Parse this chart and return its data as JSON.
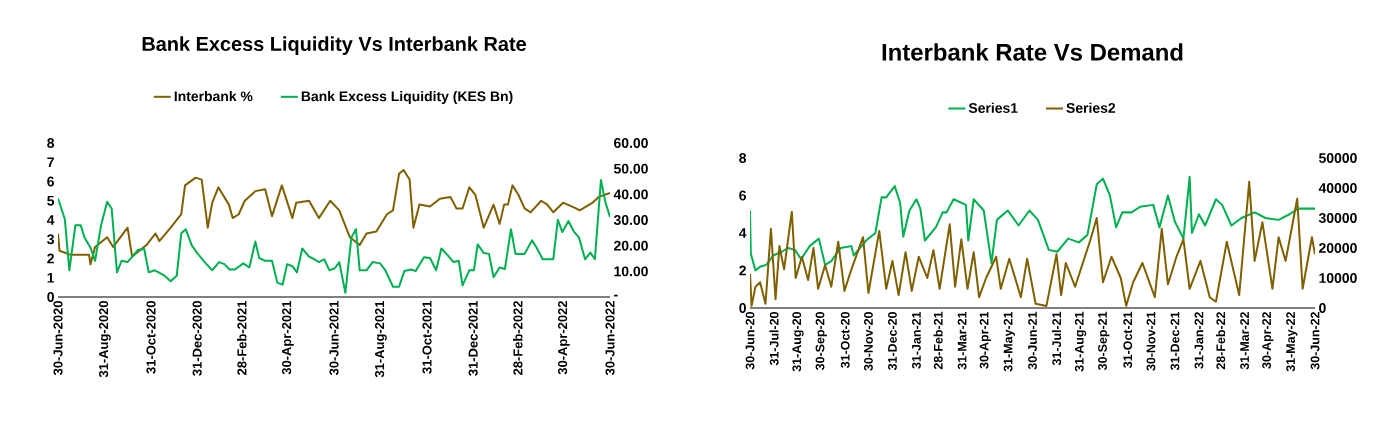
{
  "chart_data": [
    {
      "type": "line",
      "title": "Bank Excess Liquidity Vs Interbank Rate",
      "legend": "top",
      "xlim": [
        "2020-06-30",
        "2022-06-30"
      ],
      "xticks": [
        {
          "value": "2020-06-30",
          "label": "30-Jun-2020"
        },
        {
          "value": "2020-08-31",
          "label": "31-Aug-2020"
        },
        {
          "value": "2020-10-31",
          "label": "31-Oct-2020"
        },
        {
          "value": "2020-12-31",
          "label": "31-Dec-2020"
        },
        {
          "value": "2021-02-28",
          "label": "28-Feb-2021"
        },
        {
          "value": "2021-04-30",
          "label": "30-Apr-2021"
        },
        {
          "value": "2021-06-30",
          "label": "30-Jun-2021"
        },
        {
          "value": "2021-08-31",
          "label": "31-Aug-2021"
        },
        {
          "value": "2021-10-31",
          "label": "31-Oct-2021"
        },
        {
          "value": "2021-12-31",
          "label": "31-Dec-2021"
        },
        {
          "value": "2022-02-28",
          "label": "28-Feb-2022"
        },
        {
          "value": "2022-04-30",
          "label": "30-Apr-2022"
        },
        {
          "value": "2022-06-30",
          "label": "30-Jun-2022"
        }
      ],
      "ylim": [
        0,
        8
      ],
      "yticks": [
        0,
        1,
        2,
        3,
        4,
        5,
        6,
        7,
        8
      ],
      "y2lim": [
        0,
        60
      ],
      "y2ticks": [
        {
          "value": 0,
          "label": "-"
        },
        {
          "value": 10,
          "label": "10.00"
        },
        {
          "value": 20,
          "label": "20.00"
        },
        {
          "value": 30,
          "label": "30.00"
        },
        {
          "value": 40,
          "label": "40.00"
        },
        {
          "value": 50,
          "label": "50.00"
        },
        {
          "value": 60,
          "label": "60.00"
        }
      ],
      "series": [
        {
          "name": "Interbank %",
          "color": "#7f6000",
          "axis": "y",
          "x": [
            "2020-06-30",
            "2020-07-02",
            "2020-07-16",
            "2020-08-10",
            "2020-08-12",
            "2020-08-18",
            "2020-09-03",
            "2020-09-11",
            "2020-09-30",
            "2020-10-06",
            "2020-10-25",
            "2020-11-06",
            "2020-11-11",
            "2020-11-26",
            "2020-12-10",
            "2020-12-15",
            "2020-12-29",
            "2021-01-06",
            "2021-01-14",
            "2021-01-20",
            "2021-01-28",
            "2021-02-11",
            "2021-02-16",
            "2021-02-24",
            "2021-03-04",
            "2021-03-18",
            "2021-03-31",
            "2021-04-09",
            "2021-04-22",
            "2021-05-06",
            "2021-05-11",
            "2021-05-28",
            "2021-06-10",
            "2021-06-25",
            "2021-07-07",
            "2021-07-21",
            "2021-08-03",
            "2021-08-12",
            "2021-08-25",
            "2021-09-08",
            "2021-09-16",
            "2021-09-24",
            "2021-09-30",
            "2021-10-08",
            "2021-10-13",
            "2021-10-21",
            "2021-11-04",
            "2021-11-17",
            "2021-12-01",
            "2021-12-09",
            "2021-12-17",
            "2021-12-26",
            "2022-01-03",
            "2022-01-14",
            "2022-01-27",
            "2022-02-04",
            "2022-02-10",
            "2022-02-15",
            "2022-02-21",
            "2022-03-01",
            "2022-03-09",
            "2022-03-17",
            "2022-03-31",
            "2022-04-08",
            "2022-04-16",
            "2022-04-29",
            "2022-05-16",
            "2022-05-21",
            "2022-06-07",
            "2022-06-15",
            "2022-06-30"
          ],
          "values": [
            3.3,
            2.4,
            2.2,
            2.2,
            1.7,
            2.6,
            3.1,
            2.6,
            3.6,
            2.1,
            2.7,
            3.3,
            2.9,
            3.6,
            4.3,
            5.8,
            6.2,
            6.1,
            3.6,
            4.9,
            5.7,
            4.8,
            4.1,
            4.3,
            5.0,
            5.5,
            5.6,
            4.2,
            5.8,
            4.1,
            4.9,
            5.0,
            4.1,
            5.0,
            4.5,
            3.1,
            2.7,
            3.3,
            3.4,
            4.3,
            4.5,
            6.4,
            6.6,
            6.1,
            3.6,
            4.8,
            4.7,
            5.1,
            5.2,
            4.6,
            4.6,
            5.7,
            5.3,
            3.6,
            4.8,
            3.8,
            4.8,
            4.8,
            5.8,
            5.3,
            4.6,
            4.4,
            5.0,
            4.8,
            4.4,
            4.9,
            4.6,
            4.5,
            4.9,
            5.2,
            5.4
          ]
        },
        {
          "name": "Bank Excess Liquidity (KES Bn)",
          "color": "#00b050",
          "axis": "y2",
          "x": [
            "2020-06-30",
            "2020-07-09",
            "2020-07-15",
            "2020-07-23",
            "2020-07-30",
            "2020-08-04",
            "2020-08-12",
            "2020-08-18",
            "2020-08-26",
            "2020-09-03",
            "2020-09-09",
            "2020-09-16",
            "2020-09-22",
            "2020-09-30",
            "2020-10-14",
            "2020-10-22",
            "2020-10-28",
            "2020-11-05",
            "2020-11-18",
            "2020-11-26",
            "2020-12-04",
            "2020-12-10",
            "2020-12-16",
            "2020-12-24",
            "2021-01-01",
            "2021-01-10",
            "2021-01-20",
            "2021-01-29",
            "2021-02-05",
            "2021-02-12",
            "2021-02-19",
            "2021-03-02",
            "2021-03-10",
            "2021-03-18",
            "2021-03-23",
            "2021-03-31",
            "2021-04-09",
            "2021-04-16",
            "2021-04-23",
            "2021-04-29",
            "2021-05-06",
            "2021-05-12",
            "2021-05-19",
            "2021-05-28",
            "2021-06-04",
            "2021-06-10",
            "2021-06-17",
            "2021-06-24",
            "2021-07-01",
            "2021-07-07",
            "2021-07-15",
            "2021-07-23",
            "2021-07-29",
            "2021-08-03",
            "2021-08-12",
            "2021-08-20",
            "2021-08-30",
            "2021-09-06",
            "2021-09-16",
            "2021-09-24",
            "2021-10-01",
            "2021-10-10",
            "2021-10-16",
            "2021-10-27",
            "2021-11-04",
            "2021-11-12",
            "2021-11-19",
            "2021-11-28",
            "2021-12-05",
            "2021-12-12",
            "2021-12-17",
            "2021-12-26",
            "2022-01-01",
            "2022-01-06",
            "2022-01-14",
            "2022-01-21",
            "2022-01-27",
            "2022-02-04",
            "2022-02-11",
            "2022-02-19",
            "2022-02-25",
            "2022-03-09",
            "2022-03-19",
            "2022-03-25",
            "2022-04-02",
            "2022-04-16",
            "2022-04-22",
            "2022-04-28",
            "2022-05-06",
            "2022-05-13",
            "2022-05-20",
            "2022-05-28",
            "2022-06-04",
            "2022-06-10",
            "2022-06-18",
            "2022-06-24",
            "2022-06-30"
          ],
          "values": [
            38.4,
            30.4,
            10.4,
            28.0,
            28.0,
            23.2,
            19.2,
            14.1,
            28.0,
            37.1,
            34.4,
            9.6,
            14.1,
            13.6,
            18.4,
            18.7,
            9.6,
            10.4,
            8.3,
            6.1,
            8.3,
            24.8,
            26.4,
            20.0,
            16.8,
            13.6,
            10.4,
            13.6,
            12.8,
            10.7,
            10.7,
            13.1,
            11.5,
            21.6,
            15.2,
            14.1,
            14.1,
            5.6,
            4.8,
            12.8,
            12.0,
            9.6,
            18.9,
            15.7,
            14.7,
            13.6,
            14.7,
            10.4,
            11.2,
            13.6,
            1.6,
            23.2,
            26.4,
            10.4,
            10.4,
            13.6,
            13.1,
            10.4,
            4.0,
            4.0,
            10.1,
            10.7,
            10.1,
            15.5,
            15.2,
            10.4,
            18.9,
            16.0,
            13.6,
            14.1,
            4.5,
            10.4,
            10.4,
            20.5,
            17.1,
            16.8,
            7.7,
            11.5,
            10.9,
            26.4,
            16.8,
            16.8,
            22.1,
            19.2,
            14.7,
            14.7,
            30.1,
            25.3,
            29.6,
            25.6,
            23.2,
            14.7,
            17.3,
            14.7,
            45.6,
            36.8,
            31.2
          ]
        }
      ]
    },
    {
      "type": "line",
      "title": "Interbank Rate Vs Demand",
      "legend": "top",
      "xlim": [
        "2020-06-30",
        "2022-06-30"
      ],
      "xticks": [
        {
          "value": "2020-06-30",
          "label": "30-Jun-20"
        },
        {
          "value": "2020-07-31",
          "label": "31-Jul-20"
        },
        {
          "value": "2020-08-31",
          "label": "31-Aug-20"
        },
        {
          "value": "2020-09-30",
          "label": "30-Sep-20"
        },
        {
          "value": "2020-10-31",
          "label": "31-Oct-20"
        },
        {
          "value": "2020-11-30",
          "label": "30-Nov-20"
        },
        {
          "value": "2020-12-31",
          "label": "31-Dec-20"
        },
        {
          "value": "2021-01-31",
          "label": "31-Jan-21"
        },
        {
          "value": "2021-02-28",
          "label": "28-Feb-21"
        },
        {
          "value": "2021-03-31",
          "label": "31-Mar-21"
        },
        {
          "value": "2021-04-30",
          "label": "30-Apr-21"
        },
        {
          "value": "2021-05-31",
          "label": "31-May-21"
        },
        {
          "value": "2021-06-30",
          "label": "30-Jun-21"
        },
        {
          "value": "2021-07-31",
          "label": "31-Jul-21"
        },
        {
          "value": "2021-08-31",
          "label": "31-Aug-21"
        },
        {
          "value": "2021-09-30",
          "label": "30-Sep-21"
        },
        {
          "value": "2021-10-31",
          "label": "31-Oct-21"
        },
        {
          "value": "2021-11-30",
          "label": "30-Nov-21"
        },
        {
          "value": "2021-12-31",
          "label": "31-Dec-21"
        },
        {
          "value": "2022-01-31",
          "label": "31-Jan-22"
        },
        {
          "value": "2022-02-28",
          "label": "28-Feb-22"
        },
        {
          "value": "2022-03-31",
          "label": "31-Mar-22"
        },
        {
          "value": "2022-04-30",
          "label": "30-Apr-22"
        },
        {
          "value": "2022-05-31",
          "label": "31-May-22"
        },
        {
          "value": "2022-06-30",
          "label": "30-Jun-22"
        }
      ],
      "ylim": [
        0,
        8
      ],
      "yticks": [
        0,
        2,
        4,
        6,
        8
      ],
      "y2lim": [
        0,
        50000
      ],
      "y2ticks": [
        0,
        10000,
        20000,
        30000,
        40000,
        50000
      ],
      "series": [
        {
          "name": "Series1",
          "color": "#00b050",
          "axis": "y",
          "x": [
            "2020-06-30",
            "2020-07-01",
            "2020-07-07",
            "2020-07-13",
            "2020-07-21",
            "2020-07-30",
            "2020-08-10",
            "2020-08-18",
            "2020-08-27",
            "2020-09-04",
            "2020-09-15",
            "2020-09-27",
            "2020-10-05",
            "2020-10-13",
            "2020-10-25",
            "2020-11-08",
            "2020-11-11",
            "2020-11-27",
            "2020-12-09",
            "2020-12-17",
            "2020-12-23",
            "2021-01-03",
            "2021-01-10",
            "2021-01-14",
            "2021-01-22",
            "2021-01-31",
            "2021-02-05",
            "2021-02-11",
            "2021-02-25",
            "2021-03-06",
            "2021-03-11",
            "2021-03-20",
            "2021-04-05",
            "2021-04-08",
            "2021-04-15",
            "2021-04-28",
            "2021-05-08",
            "2021-05-15",
            "2021-05-29",
            "2021-06-12",
            "2021-06-26",
            "2021-07-07",
            "2021-07-21",
            "2021-08-01",
            "2021-08-15",
            "2021-08-29",
            "2021-09-09",
            "2021-09-21",
            "2021-09-29",
            "2021-10-08",
            "2021-10-16",
            "2021-10-24",
            "2021-11-05",
            "2021-11-16",
            "2021-12-03",
            "2021-12-11",
            "2021-12-22",
            "2021-12-31",
            "2022-01-11",
            "2022-01-19",
            "2022-01-22",
            "2022-01-31",
            "2022-02-08",
            "2022-02-22",
            "2022-03-02",
            "2022-03-14",
            "2022-03-27",
            "2022-04-13",
            "2022-04-27",
            "2022-05-14",
            "2022-05-28",
            "2022-06-08",
            "2022-06-19",
            "2022-06-30"
          ],
          "values": [
            5.2,
            2.9,
            2.0,
            2.2,
            2.3,
            2.8,
            3.0,
            3.2,
            3.1,
            2.6,
            3.3,
            3.7,
            2.3,
            2.5,
            3.2,
            3.3,
            2.8,
            3.6,
            4.0,
            5.9,
            5.9,
            6.5,
            5.6,
            3.8,
            5.2,
            5.8,
            5.3,
            3.6,
            4.3,
            5.1,
            5.1,
            5.8,
            5.5,
            3.6,
            5.8,
            5.2,
            2.4,
            4.7,
            5.2,
            4.4,
            5.2,
            4.7,
            3.1,
            3.0,
            3.7,
            3.5,
            3.9,
            6.6,
            6.9,
            6.0,
            4.3,
            5.1,
            5.1,
            5.4,
            5.5,
            4.3,
            6.0,
            4.6,
            3.7,
            7.0,
            4.0,
            5.0,
            4.4,
            5.8,
            5.5,
            4.4,
            4.8,
            5.1,
            4.8,
            4.7,
            5.0,
            5.3,
            5.3,
            5.3
          ]
        },
        {
          "name": "Series2",
          "color": "#7f6000",
          "axis": "y2",
          "x": [
            "2020-06-30",
            "2020-07-02",
            "2020-07-07",
            "2020-07-13",
            "2020-07-20",
            "2020-07-27",
            "2020-08-02",
            "2020-08-07",
            "2020-08-13",
            "2020-08-23",
            "2020-08-28",
            "2020-09-05",
            "2020-09-13",
            "2020-09-20",
            "2020-09-26",
            "2020-10-05",
            "2020-10-13",
            "2020-10-22",
            "2020-10-30",
            "2020-11-08",
            "2020-11-23",
            "2020-11-30",
            "2020-12-14",
            "2020-12-23",
            "2020-12-31",
            "2021-01-08",
            "2021-01-17",
            "2021-01-25",
            "2021-02-03",
            "2021-02-14",
            "2021-02-22",
            "2021-03-02",
            "2021-03-15",
            "2021-03-22",
            "2021-03-30",
            "2021-04-07",
            "2021-04-15",
            "2021-04-22",
            "2021-05-01",
            "2021-05-14",
            "2021-05-20",
            "2021-05-31",
            "2021-06-15",
            "2021-06-23",
            "2021-07-04",
            "2021-07-18",
            "2021-07-31",
            "2021-08-06",
            "2021-08-12",
            "2021-08-24",
            "2021-09-12",
            "2021-09-21",
            "2021-09-29",
            "2021-10-10",
            "2021-10-22",
            "2021-10-29",
            "2021-11-07",
            "2021-11-19",
            "2021-12-05",
            "2021-12-14",
            "2021-12-22",
            "2022-01-02",
            "2022-01-11",
            "2022-01-19",
            "2022-02-02",
            "2022-02-14",
            "2022-02-22",
            "2022-03-08",
            "2022-03-24",
            "2022-04-06",
            "2022-04-13",
            "2022-04-23",
            "2022-05-06",
            "2022-05-14",
            "2022-05-23",
            "2022-06-07",
            "2022-06-14",
            "2022-06-22",
            "2022-06-26",
            "2022-06-30"
          ],
          "values": [
            11400,
            700,
            7100,
            8600,
            1400,
            26400,
            2900,
            20700,
            12900,
            32100,
            10000,
            17100,
            9300,
            20000,
            6400,
            14300,
            7100,
            22100,
            5700,
            12900,
            23600,
            5000,
            25700,
            6400,
            15700,
            4300,
            18600,
            5700,
            17100,
            10000,
            19300,
            6400,
            27900,
            7100,
            22900,
            6400,
            18600,
            3600,
            10000,
            17100,
            6400,
            16400,
            3600,
            16400,
            1400,
            700,
            17900,
            4300,
            15000,
            7100,
            22100,
            30000,
            8600,
            17100,
            10000,
            700,
            8600,
            15000,
            3600,
            26400,
            7900,
            17100,
            22900,
            6400,
            15700,
            3600,
            2100,
            22100,
            4300,
            42100,
            15700,
            28600,
            6400,
            23600,
            15700,
            36400,
            6400,
            17900,
            23600,
            17900
          ]
        }
      ]
    }
  ]
}
